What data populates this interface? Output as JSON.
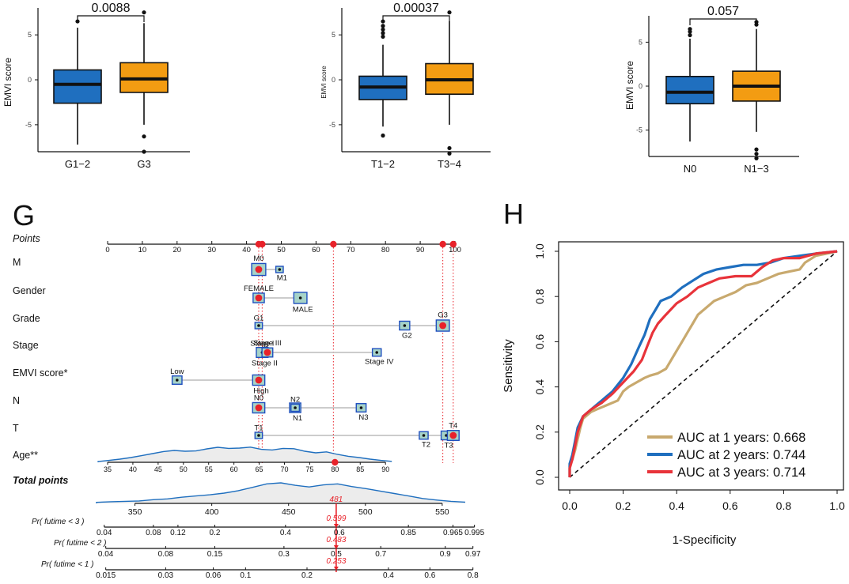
{
  "chart_data": [
    {
      "type": "box",
      "id": "grade_box",
      "ylabel": "EMVI score",
      "ylim": [
        -8,
        8
      ],
      "yticks": [
        -5,
        0,
        5
      ],
      "p_value": "0.0088",
      "categories": [
        "G1−2",
        "G3"
      ],
      "boxes": [
        {
          "category": "G1−2",
          "color": "#1f6fbf",
          "whisker_low": -7.2,
          "q1": -2.6,
          "median": -0.5,
          "q3": 1.1,
          "whisker_high": 5.8,
          "outliers": [
            6.5
          ]
        },
        {
          "category": "G3",
          "color": "#f39c12",
          "whisker_low": -5.0,
          "q1": -1.4,
          "median": 0.1,
          "q3": 1.9,
          "whisker_high": 6.3,
          "outliers": [
            7.5,
            -6.3,
            -8.0
          ]
        }
      ]
    },
    {
      "type": "box",
      "id": "t_box",
      "ylabel": "EMVI score",
      "ylim": [
        -8,
        8
      ],
      "yticks": [
        -5,
        0,
        5
      ],
      "p_value": "0.00037",
      "categories": [
        "T1−2",
        "T3−4"
      ],
      "boxes": [
        {
          "category": "T1−2",
          "color": "#1f6fbf",
          "whisker_low": -5.2,
          "q1": -2.2,
          "median": -0.8,
          "q3": 0.4,
          "whisker_high": 3.9,
          "outliers": [
            4.8,
            5.2,
            5.6,
            6.0,
            6.5,
            -6.2
          ]
        },
        {
          "category": "T3−4",
          "color": "#f39c12",
          "whisker_low": -5.0,
          "q1": -1.6,
          "median": 0.0,
          "q3": 1.8,
          "whisker_high": 6.5,
          "outliers": [
            7.5,
            -7.6,
            -8.2
          ]
        }
      ]
    },
    {
      "type": "box",
      "id": "n_box",
      "ylabel": "EMVI score",
      "ylim": [
        -8,
        8
      ],
      "yticks": [
        -5,
        0,
        5
      ],
      "p_value": "0.057",
      "categories": [
        "N0",
        "N1−3"
      ],
      "boxes": [
        {
          "category": "N0",
          "color": "#1f6fbf",
          "whisker_low": -6.3,
          "q1": -2.0,
          "median": -0.7,
          "q3": 1.1,
          "whisker_high": 5.4,
          "outliers": [
            5.8,
            6.2,
            6.5
          ]
        },
        {
          "category": "N1−3",
          "color": "#f39c12",
          "whisker_low": -5.2,
          "q1": -1.7,
          "median": 0.0,
          "q3": 1.7,
          "whisker_high": 6.5,
          "outliers": [
            7.0,
            7.3,
            -7.2,
            -7.7,
            -8.2
          ]
        }
      ]
    },
    {
      "type": "nomogram",
      "id": "nomogram",
      "panel_label": "G",
      "points_title": "Points",
      "points_range": [
        0,
        100
      ],
      "points_ticks": [
        0,
        10,
        20,
        30,
        40,
        50,
        60,
        70,
        80,
        90,
        100
      ],
      "selected_points": [
        43.5,
        44.5,
        65,
        96.5,
        99.5
      ],
      "vlines": [
        43.5,
        44.5,
        65,
        96.5,
        99.5
      ],
      "variables": [
        {
          "name": "M",
          "levels": [
            {
              "label": "M0",
              "points": 43.5,
              "size": 1.8,
              "label_pos": "above",
              "selected": true
            },
            {
              "label": "M1",
              "points": 49.5,
              "size": 0.4,
              "label_pos": "below"
            }
          ]
        },
        {
          "name": "Gender",
          "levels": [
            {
              "label": "FEMALE",
              "points": 43.5,
              "size": 1.2,
              "label_pos": "above",
              "selected": true
            },
            {
              "label": "MALE",
              "points": 55.5,
              "size": 1.6,
              "label_pos": "below"
            }
          ]
        },
        {
          "name": "Grade",
          "levels": [
            {
              "label": "G1",
              "points": 43.5,
              "size": 0.4,
              "label_pos": "above"
            },
            {
              "label": "G2",
              "points": 85.5,
              "size": 1.0,
              "label_pos": "below"
            },
            {
              "label": "G3",
              "points": 96.5,
              "size": 1.6,
              "label_pos": "above",
              "selected": true
            }
          ]
        },
        {
          "name": "Stage",
          "levels": [
            {
              "label": "Stage I",
              "points": 44.5,
              "size": 1.0,
              "label_pos": "above"
            },
            {
              "label": "Stage II",
              "points": 44.5,
              "size": 1.3,
              "label_pos": "below"
            },
            {
              "label": "Stage III",
              "points": 46.0,
              "size": 1.1,
              "label_pos": "above",
              "selected": true
            },
            {
              "label": "Stage IV",
              "points": 77.5,
              "size": 0.7,
              "label_pos": "below"
            }
          ]
        },
        {
          "name": "EMVI score*",
          "levels": [
            {
              "label": "Low",
              "points": 20.0,
              "size": 0.9,
              "label_pos": "above"
            },
            {
              "label": "High",
              "points": 43.5,
              "size": 1.4,
              "label_pos": "below",
              "selected": true
            }
          ]
        },
        {
          "name": "N",
          "levels": [
            {
              "label": "N0",
              "points": 43.5,
              "size": 1.4,
              "label_pos": "above",
              "selected": true
            },
            {
              "label": "N1",
              "points": 54.0,
              "size": 1.2,
              "label_pos": "below"
            },
            {
              "label": "N2",
              "points": 54.0,
              "size": 0.6,
              "label_pos": "above"
            },
            {
              "label": "N3",
              "points": 73.0,
              "size": 0.9,
              "label_pos": "below"
            }
          ]
        },
        {
          "name": "T",
          "levels": [
            {
              "label": "T1",
              "points": 43.5,
              "size": 0.4,
              "label_pos": "above"
            },
            {
              "label": "T2",
              "points": 91.0,
              "size": 0.7,
              "label_pos": "below"
            },
            {
              "label": "T3",
              "points": 97.5,
              "size": 1.0,
              "label_pos": "below"
            },
            {
              "label": "T4",
              "points": 99.5,
              "size": 1.3,
              "label_pos": "above",
              "selected": true
            }
          ]
        }
      ],
      "age": {
        "name": "Age**",
        "ticks": [
          35,
          40,
          45,
          50,
          55,
          60,
          65,
          70,
          75,
          80,
          85,
          90
        ],
        "age_range": [
          35,
          90
        ],
        "points_range": [
          0,
          80
        ],
        "selected_age": 80,
        "density": [
          0.05,
          0.12,
          0.2,
          0.3,
          0.42,
          0.55,
          0.68,
          0.75,
          0.7,
          0.72,
          0.85,
          0.95,
          0.88,
          0.9,
          0.96,
          0.82,
          0.78,
          0.88,
          0.86,
          0.7,
          0.6,
          0.66,
          0.5,
          0.38,
          0.3,
          0.2,
          0.12,
          0.06
        ]
      },
      "total_points": {
        "name": "Total points",
        "ticks": [
          350,
          400,
          450,
          500,
          550
        ],
        "range": [
          325,
          565
        ],
        "selected": 481,
        "selected_label": "481",
        "density": [
          0.05,
          0.08,
          0.1,
          0.12,
          0.18,
          0.22,
          0.3,
          0.36,
          0.42,
          0.5,
          0.62,
          0.78,
          0.95,
          1.0,
          0.88,
          0.8,
          0.9,
          0.95,
          0.82,
          0.72,
          0.6,
          0.48,
          0.36,
          0.24,
          0.16,
          0.1,
          0.06
        ]
      },
      "prob_axes": [
        {
          "label": "Pr( futime < 3 )",
          "ticks": [
            "0.04",
            "0.08",
            "0.12",
            "0.2",
            "0.4",
            "0.6",
            "0.85",
            "0.965",
            "0.995"
          ],
          "tick_totals": [
            330,
            362,
            378,
            402,
            448,
            483,
            528,
            557,
            571
          ],
          "selected_label": "0.599"
        },
        {
          "label": "Pr( futime < 2 )",
          "ticks": [
            "0.04",
            "0.08",
            "0.15",
            "0.3",
            "0.5",
            "0.7",
            "0.9",
            "0.97"
          ],
          "tick_totals": [
            331,
            370,
            402,
            447,
            481,
            510,
            552,
            570
          ],
          "selected_label": "0.483"
        },
        {
          "label": "Pr( futime < 1 )",
          "ticks": [
            "0.015",
            "0.03",
            "0.06",
            "0.1",
            "0.2",
            "0.4",
            "0.6",
            "0.8"
          ],
          "tick_totals": [
            331,
            370,
            401,
            422,
            462,
            515,
            542,
            570
          ],
          "selected_label": "0.253"
        }
      ]
    },
    {
      "type": "line",
      "id": "roc",
      "panel_label": "H",
      "title": "",
      "xlabel": "1-Specificity",
      "ylabel": "Sensitivity",
      "xlim": [
        0,
        1
      ],
      "ylim": [
        0,
        1
      ],
      "xticks": [
        "0.0",
        "0.2",
        "0.4",
        "0.6",
        "0.8",
        "1.0"
      ],
      "yticks": [
        "0.0",
        "0.2",
        "0.4",
        "0.6",
        "0.8",
        "1.0"
      ],
      "series": [
        {
          "name": "AUC at 1 years: 0.668",
          "color": "#c8a96e",
          "points": [
            [
              0,
              0
            ],
            [
              0,
              0.05
            ],
            [
              0.01,
              0.08
            ],
            [
              0.02,
              0.12
            ],
            [
              0.03,
              0.17
            ],
            [
              0.04,
              0.22
            ],
            [
              0.05,
              0.26
            ],
            [
              0.08,
              0.29
            ],
            [
              0.1,
              0.3
            ],
            [
              0.14,
              0.32
            ],
            [
              0.18,
              0.34
            ],
            [
              0.2,
              0.38
            ],
            [
              0.22,
              0.4
            ],
            [
              0.25,
              0.42
            ],
            [
              0.28,
              0.44
            ],
            [
              0.3,
              0.45
            ],
            [
              0.33,
              0.46
            ],
            [
              0.36,
              0.48
            ],
            [
              0.38,
              0.52
            ],
            [
              0.4,
              0.56
            ],
            [
              0.42,
              0.6
            ],
            [
              0.44,
              0.64
            ],
            [
              0.46,
              0.68
            ],
            [
              0.48,
              0.72
            ],
            [
              0.5,
              0.74
            ],
            [
              0.54,
              0.78
            ],
            [
              0.58,
              0.8
            ],
            [
              0.62,
              0.82
            ],
            [
              0.66,
              0.85
            ],
            [
              0.7,
              0.86
            ],
            [
              0.74,
              0.88
            ],
            [
              0.78,
              0.9
            ],
            [
              0.82,
              0.91
            ],
            [
              0.86,
              0.92
            ],
            [
              0.88,
              0.95
            ],
            [
              0.92,
              0.98
            ],
            [
              0.96,
              0.99
            ],
            [
              1.0,
              1.0
            ]
          ]
        },
        {
          "name": "AUC at 2 years: 0.744",
          "color": "#1f6fbf",
          "points": [
            [
              0,
              0
            ],
            [
              0,
              0.06
            ],
            [
              0.01,
              0.1
            ],
            [
              0.02,
              0.16
            ],
            [
              0.03,
              0.22
            ],
            [
              0.05,
              0.27
            ],
            [
              0.08,
              0.3
            ],
            [
              0.12,
              0.34
            ],
            [
              0.16,
              0.38
            ],
            [
              0.2,
              0.44
            ],
            [
              0.23,
              0.5
            ],
            [
              0.26,
              0.58
            ],
            [
              0.28,
              0.63
            ],
            [
              0.3,
              0.7
            ],
            [
              0.32,
              0.74
            ],
            [
              0.34,
              0.78
            ],
            [
              0.38,
              0.8
            ],
            [
              0.42,
              0.84
            ],
            [
              0.46,
              0.87
            ],
            [
              0.5,
              0.9
            ],
            [
              0.55,
              0.92
            ],
            [
              0.6,
              0.93
            ],
            [
              0.65,
              0.94
            ],
            [
              0.7,
              0.94
            ],
            [
              0.75,
              0.95
            ],
            [
              0.8,
              0.97
            ],
            [
              0.86,
              0.98
            ],
            [
              0.92,
              0.99
            ],
            [
              1.0,
              1.0
            ]
          ]
        },
        {
          "name": "AUC at 3 years: 0.714",
          "color": "#e8333a",
          "points": [
            [
              0,
              0
            ],
            [
              0,
              0.04
            ],
            [
              0.01,
              0.08
            ],
            [
              0.02,
              0.14
            ],
            [
              0.03,
              0.2
            ],
            [
              0.05,
              0.27
            ],
            [
              0.08,
              0.3
            ],
            [
              0.12,
              0.33
            ],
            [
              0.16,
              0.37
            ],
            [
              0.2,
              0.42
            ],
            [
              0.24,
              0.47
            ],
            [
              0.27,
              0.52
            ],
            [
              0.29,
              0.58
            ],
            [
              0.31,
              0.64
            ],
            [
              0.33,
              0.68
            ],
            [
              0.36,
              0.72
            ],
            [
              0.4,
              0.77
            ],
            [
              0.44,
              0.8
            ],
            [
              0.48,
              0.84
            ],
            [
              0.52,
              0.86
            ],
            [
              0.56,
              0.88
            ],
            [
              0.62,
              0.89
            ],
            [
              0.68,
              0.89
            ],
            [
              0.72,
              0.93
            ],
            [
              0.76,
              0.96
            ],
            [
              0.8,
              0.97
            ],
            [
              0.86,
              0.97
            ],
            [
              0.92,
              0.99
            ],
            [
              1.0,
              1.0
            ]
          ]
        }
      ],
      "reference_line": [
        [
          0,
          0
        ],
        [
          1,
          1
        ]
      ]
    }
  ]
}
